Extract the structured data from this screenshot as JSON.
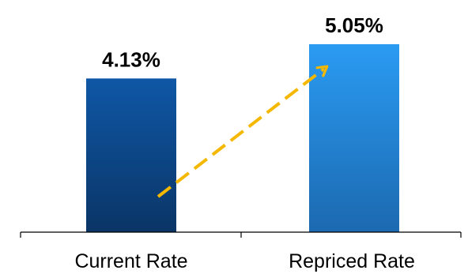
{
  "chart_data": {
    "type": "bar",
    "categories": [
      "Current Rate",
      "Repriced Rate"
    ],
    "values": [
      4.13,
      5.05
    ],
    "value_labels": [
      "4.13%",
      "5.05%"
    ],
    "ylim": [
      0,
      5.05
    ],
    "grid": false,
    "legend": "none",
    "annotations": [
      {
        "type": "dashed-arrow",
        "from_category": "Current Rate",
        "to_category": "Repriced Rate",
        "color": "#F5B800"
      }
    ],
    "colors": {
      "current_bar_top": "#0F57A6",
      "current_bar_bottom": "#0A3566",
      "repriced_bar_top": "#2A9BF2",
      "repriced_bar_bottom": "#1C69B0",
      "arrow": "#F5B800",
      "axis": "#000000"
    }
  }
}
